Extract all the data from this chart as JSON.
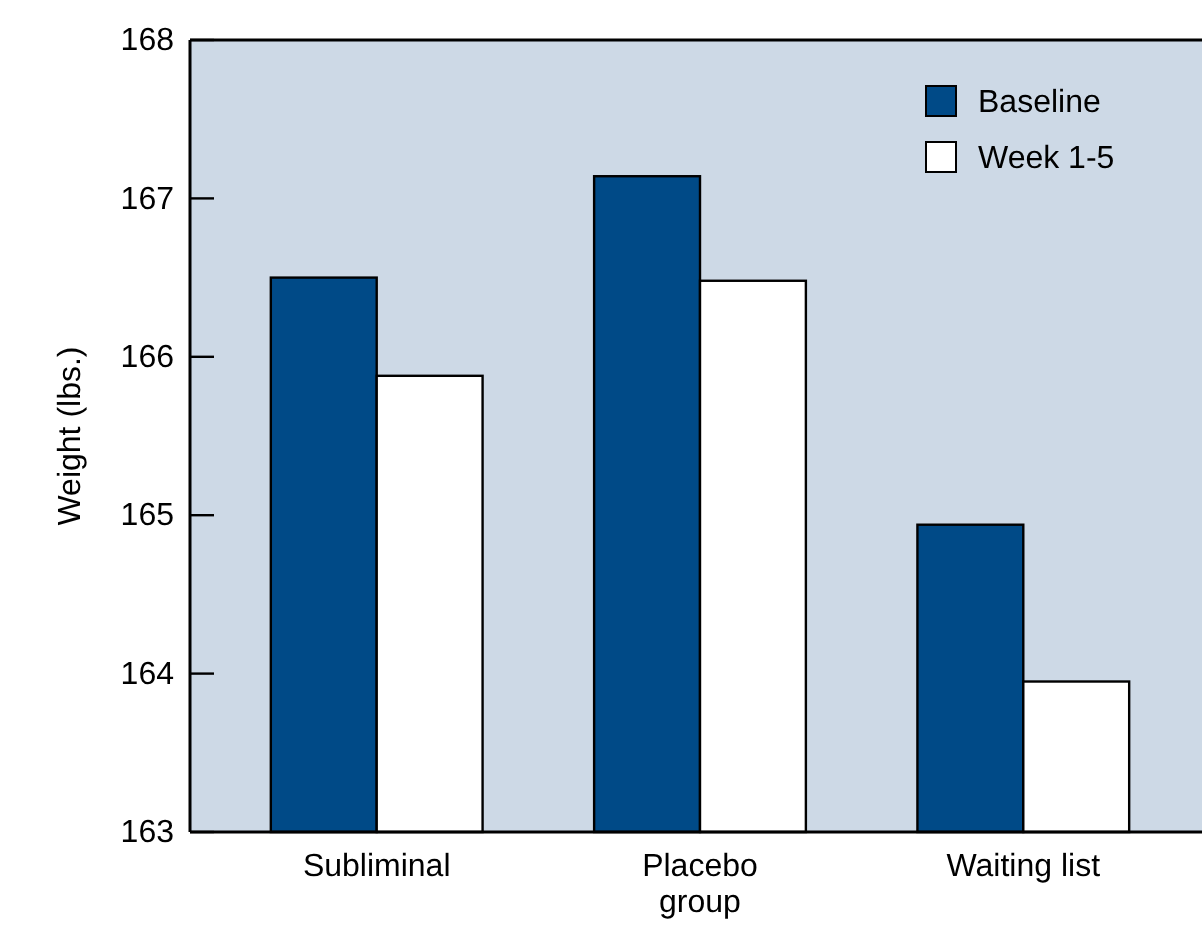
{
  "chart_data": {
    "type": "bar",
    "ylabel": "Weight (lbs.)",
    "categories": [
      "Subliminal",
      "Placebo\ngroup",
      "Waiting list"
    ],
    "series": [
      {
        "name": "Baseline",
        "color": "#004a87",
        "values": [
          166.5,
          167.14,
          164.94
        ]
      },
      {
        "name": "Week 1-5",
        "color": "#ffffff",
        "values": [
          165.88,
          166.48,
          163.95
        ]
      }
    ],
    "ylim": [
      163,
      168
    ],
    "yticks": [
      163,
      164,
      165,
      166,
      167,
      168
    ],
    "grid": false,
    "legend": "top right"
  }
}
